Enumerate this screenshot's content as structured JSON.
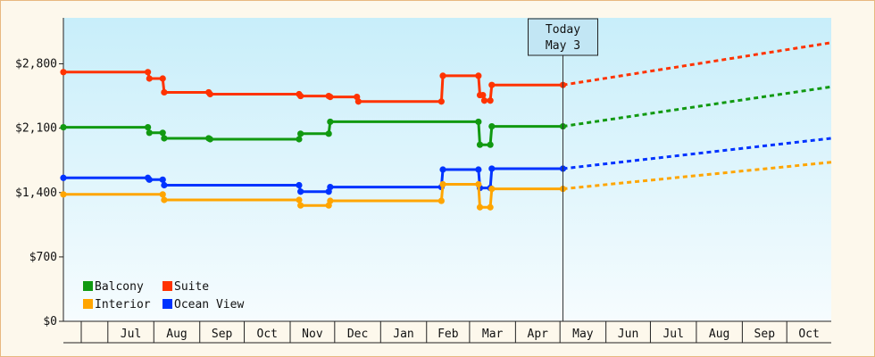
{
  "chart_data": {
    "type": "line",
    "title": "",
    "xlabel": "",
    "ylabel": "",
    "ylim": [
      0,
      3300
    ],
    "y_ticks": [
      0,
      700,
      1400,
      2100,
      2800
    ],
    "y_tick_labels": [
      "$0",
      "$700",
      "$1,400",
      "$2,100",
      "$2,800"
    ],
    "x_range": [
      "2023-06-01",
      "2024-10-31"
    ],
    "month_ticks": [
      "Jul",
      "Aug",
      "Sep",
      "Oct",
      "Nov",
      "Dec",
      "Jan",
      "Feb",
      "Mar",
      "Apr",
      "May",
      "Jun",
      "Jul",
      "Aug",
      "Sep",
      "Oct"
    ],
    "today": {
      "line1": "Today",
      "line2": "May 3",
      "date": "2024-05-03"
    },
    "legend_position": "bottom-left",
    "grid": false,
    "series": [
      {
        "name": "Suite",
        "color": "#ff3300",
        "history": [
          [
            "2023-06-01",
            2710
          ],
          [
            "2023-07-28",
            2710
          ],
          [
            "2023-07-29",
            2640
          ],
          [
            "2023-08-07",
            2640
          ],
          [
            "2023-08-08",
            2490
          ],
          [
            "2023-09-07",
            2490
          ],
          [
            "2023-09-08",
            2470
          ],
          [
            "2023-11-07",
            2470
          ],
          [
            "2023-11-08",
            2450
          ],
          [
            "2023-11-27",
            2450
          ],
          [
            "2023-11-28",
            2440
          ],
          [
            "2023-12-16",
            2440
          ],
          [
            "2023-12-17",
            2390
          ],
          [
            "2024-02-11",
            2390
          ],
          [
            "2024-02-12",
            2670
          ],
          [
            "2024-03-07",
            2670
          ],
          [
            "2024-03-08",
            2460
          ],
          [
            "2024-03-10",
            2460
          ],
          [
            "2024-03-11",
            2400
          ],
          [
            "2024-03-15",
            2400
          ],
          [
            "2024-03-16",
            2570
          ],
          [
            "2024-05-03",
            2570
          ]
        ],
        "forecast": [
          [
            "2024-05-03",
            2570
          ],
          [
            "2024-10-31",
            3030
          ]
        ]
      },
      {
        "name": "Balcony",
        "color": "#119911",
        "history": [
          [
            "2023-06-01",
            2110
          ],
          [
            "2023-07-28",
            2110
          ],
          [
            "2023-07-29",
            2050
          ],
          [
            "2023-08-07",
            2050
          ],
          [
            "2023-08-08",
            1990
          ],
          [
            "2023-09-07",
            1990
          ],
          [
            "2023-09-08",
            1980
          ],
          [
            "2023-11-07",
            1980
          ],
          [
            "2023-11-08",
            2040
          ],
          [
            "2023-11-27",
            2040
          ],
          [
            "2023-11-28",
            2170
          ],
          [
            "2023-12-16",
            2170
          ],
          [
            "2024-03-07",
            2170
          ],
          [
            "2024-03-08",
            1920
          ],
          [
            "2024-03-15",
            1920
          ],
          [
            "2024-03-16",
            2120
          ],
          [
            "2024-05-03",
            2120
          ]
        ],
        "forecast": [
          [
            "2024-05-03",
            2120
          ],
          [
            "2024-10-31",
            2550
          ]
        ]
      },
      {
        "name": "Ocean View",
        "color": "#0033ff",
        "history": [
          [
            "2023-06-01",
            1560
          ],
          [
            "2023-07-28",
            1560
          ],
          [
            "2023-07-29",
            1540
          ],
          [
            "2023-08-07",
            1540
          ],
          [
            "2023-08-08",
            1480
          ],
          [
            "2023-09-07",
            1480
          ],
          [
            "2023-11-07",
            1480
          ],
          [
            "2023-11-08",
            1410
          ],
          [
            "2023-11-27",
            1410
          ],
          [
            "2023-11-28",
            1460
          ],
          [
            "2023-12-16",
            1460
          ],
          [
            "2024-02-11",
            1460
          ],
          [
            "2024-02-12",
            1650
          ],
          [
            "2024-03-07",
            1650
          ],
          [
            "2024-03-08",
            1450
          ],
          [
            "2024-03-15",
            1450
          ],
          [
            "2024-03-16",
            1660
          ],
          [
            "2024-05-03",
            1660
          ]
        ],
        "forecast": [
          [
            "2024-05-03",
            1660
          ],
          [
            "2024-10-31",
            1990
          ]
        ]
      },
      {
        "name": "Interior",
        "color": "#ffa500",
        "history": [
          [
            "2023-06-01",
            1380
          ],
          [
            "2023-08-07",
            1380
          ],
          [
            "2023-08-08",
            1320
          ],
          [
            "2023-09-07",
            1320
          ],
          [
            "2023-11-07",
            1320
          ],
          [
            "2023-11-08",
            1260
          ],
          [
            "2023-11-27",
            1260
          ],
          [
            "2023-11-28",
            1310
          ],
          [
            "2023-12-16",
            1310
          ],
          [
            "2024-02-11",
            1310
          ],
          [
            "2024-02-12",
            1490
          ],
          [
            "2024-03-07",
            1490
          ],
          [
            "2024-03-08",
            1240
          ],
          [
            "2024-03-15",
            1240
          ],
          [
            "2024-03-16",
            1440
          ],
          [
            "2024-05-03",
            1440
          ]
        ],
        "forecast": [
          [
            "2024-05-03",
            1440
          ],
          [
            "2024-10-31",
            1730
          ]
        ]
      }
    ]
  }
}
